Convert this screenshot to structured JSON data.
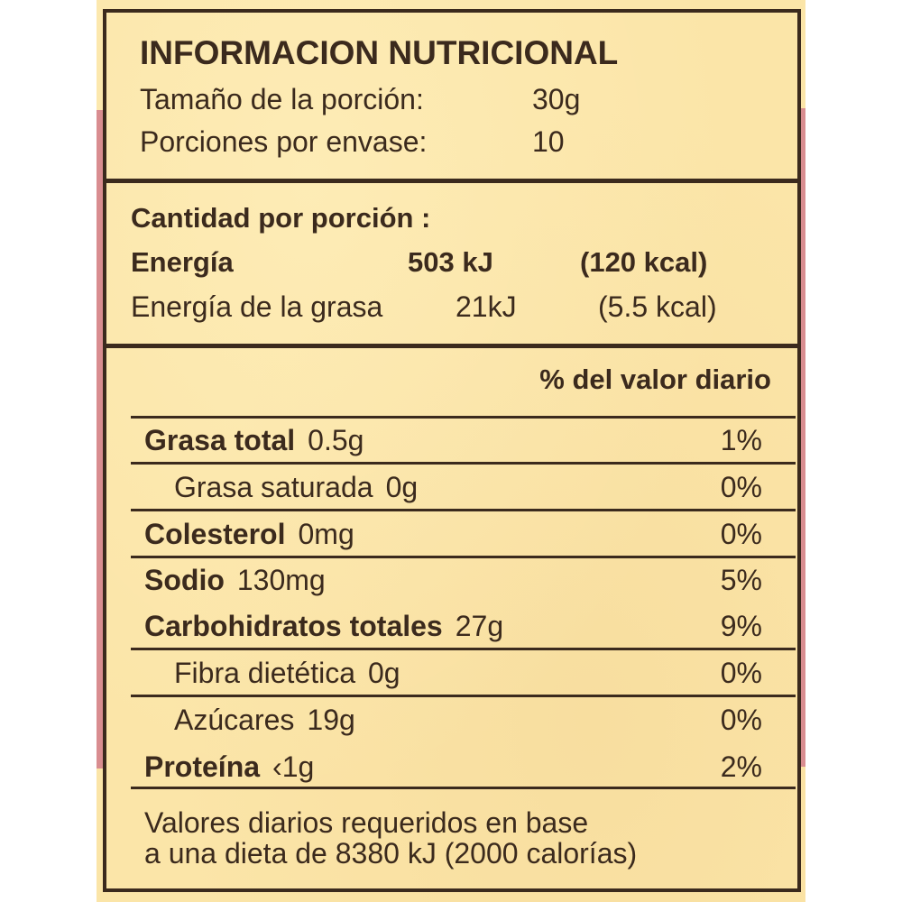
{
  "header": {
    "title": "INFORMACION NUTRICIONAL",
    "serving_size_label": "Tamaño de la porción:",
    "serving_size_value": "30g",
    "servings_label": "Porciones por envase:",
    "servings_value": "10"
  },
  "energy": {
    "heading": "Cantidad por porción :",
    "energy_label": "Energía",
    "energy_kj": "503 kJ",
    "energy_kcal": "(120 kcal)",
    "fat_energy_label": "Energía de la grasa",
    "fat_energy_kj": "21kJ",
    "fat_energy_kcal": "(5.5 kcal)"
  },
  "dv_heading": "% del valor diario",
  "nutrients": [
    {
      "name": "Grasa total",
      "amount": "0.5g",
      "dv": "1%",
      "bold": true,
      "indent": false
    },
    {
      "name": "Grasa saturada",
      "amount": "0g",
      "dv": "0%",
      "bold": false,
      "indent": true
    },
    {
      "name": "Colesterol",
      "amount": "0mg",
      "dv": "0%",
      "bold": true,
      "indent": false
    },
    {
      "name": "Sodio",
      "amount": "130mg",
      "dv": "5%",
      "bold": true,
      "indent": false
    },
    {
      "name": "Carbohidratos totales",
      "amount": "27g",
      "dv": "9%",
      "bold": true,
      "indent": false
    },
    {
      "name": "Fibra dietética",
      "amount": "0g",
      "dv": "0%",
      "bold": false,
      "indent": true
    },
    {
      "name": "Azúcares",
      "amount": "19g",
      "dv": "0%",
      "bold": false,
      "indent": true
    },
    {
      "name": "Proteína",
      "amount": "‹1g",
      "dv": "2%",
      "bold": true,
      "indent": false
    }
  ],
  "footer": {
    "line1": "Valores diarios requeridos en base",
    "line2": "a una dieta de 8380 kJ (2000 calorías)"
  },
  "colors": {
    "ink": "#3b2a1d",
    "paper": "#fbe5a8",
    "edge": "#d98d90"
  }
}
